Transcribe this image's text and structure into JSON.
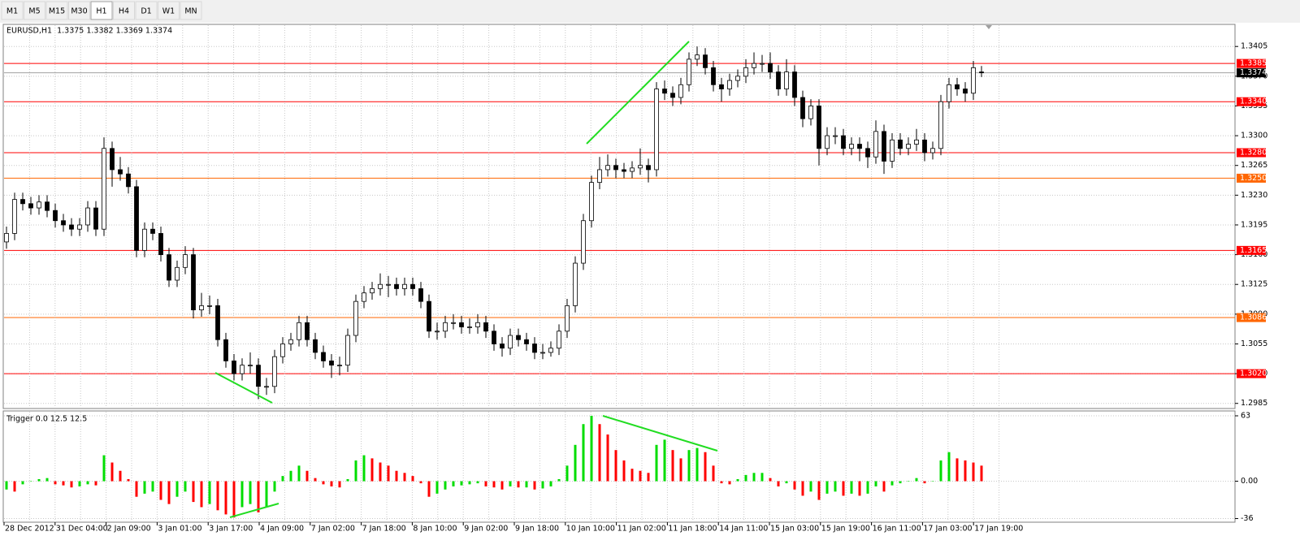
{
  "toolbar": {
    "timeframes": [
      "M1",
      "M5",
      "M15",
      "M30",
      "H1",
      "H4",
      "D1",
      "W1",
      "MN"
    ],
    "active": 4
  },
  "chart_data": [
    {
      "type": "candlestick",
      "title": "EURUSD,H1  1.3375 1.3382 1.3369 1.3374",
      "ohlc": [
        [
          1.3175,
          1.3193,
          1.3167,
          1.3185
        ],
        [
          1.3185,
          1.3233,
          1.3177,
          1.3225
        ],
        [
          1.3225,
          1.3233,
          1.3212,
          1.322
        ],
        [
          1.322,
          1.3228,
          1.3207,
          1.3215
        ],
        [
          1.3215,
          1.323,
          1.3207,
          1.3222
        ],
        [
          1.3222,
          1.323,
          1.3204,
          1.3212
        ],
        [
          1.3212,
          1.322,
          1.3192,
          1.32
        ],
        [
          1.32,
          1.3208,
          1.3187,
          1.3195
        ],
        [
          1.3195,
          1.3203,
          1.3182,
          1.319
        ],
        [
          1.319,
          1.3203,
          1.3182,
          1.3195
        ],
        [
          1.3195,
          1.3223,
          1.3187,
          1.3215
        ],
        [
          1.3215,
          1.3223,
          1.3182,
          1.319
        ],
        [
          1.319,
          1.3298,
          1.3182,
          1.3285
        ],
        [
          1.3285,
          1.3293,
          1.324,
          1.326
        ],
        [
          1.326,
          1.3275,
          1.3247,
          1.3255
        ],
        [
          1.3255,
          1.3263,
          1.3232,
          1.324
        ],
        [
          1.324,
          1.3248,
          1.3157,
          1.3165
        ],
        [
          1.3165,
          1.3198,
          1.3157,
          1.319
        ],
        [
          1.319,
          1.3198,
          1.3177,
          1.3185
        ],
        [
          1.3185,
          1.3193,
          1.3152,
          1.316
        ],
        [
          1.316,
          1.3168,
          1.3122,
          1.313
        ],
        [
          1.313,
          1.3153,
          1.3122,
          1.3145
        ],
        [
          1.3145,
          1.317,
          1.3137,
          1.316
        ],
        [
          1.316,
          1.3168,
          1.3085,
          1.3095
        ],
        [
          1.3095,
          1.3115,
          1.3087,
          1.31
        ],
        [
          1.31,
          1.3112,
          1.309,
          1.31
        ],
        [
          1.31,
          1.3108,
          1.3052,
          1.306
        ],
        [
          1.306,
          1.3068,
          1.3027,
          1.3035
        ],
        [
          1.3035,
          1.3043,
          1.3012,
          1.302
        ],
        [
          1.302,
          1.3038,
          1.3012,
          1.303
        ],
        [
          1.303,
          1.3045,
          1.302,
          1.303
        ],
        [
          1.303,
          1.3038,
          1.299,
          1.3005
        ],
        [
          1.3005,
          1.3015,
          1.2995,
          1.3005
        ],
        [
          1.3005,
          1.3048,
          1.2997,
          1.304
        ],
        [
          1.304,
          1.3063,
          1.3032,
          1.3055
        ],
        [
          1.3055,
          1.3068,
          1.3047,
          1.306
        ],
        [
          1.306,
          1.3088,
          1.3052,
          1.308
        ],
        [
          1.308,
          1.3088,
          1.3052,
          1.306
        ],
        [
          1.306,
          1.3068,
          1.3037,
          1.3045
        ],
        [
          1.3045,
          1.3053,
          1.3027,
          1.3035
        ],
        [
          1.3035,
          1.3043,
          1.3015,
          1.303
        ],
        [
          1.303,
          1.304,
          1.3018,
          1.303
        ],
        [
          1.303,
          1.3073,
          1.3022,
          1.3065
        ],
        [
          1.3065,
          1.3113,
          1.3057,
          1.3105
        ],
        [
          1.3105,
          1.3123,
          1.3097,
          1.3115
        ],
        [
          1.3115,
          1.3128,
          1.3107,
          1.312
        ],
        [
          1.312,
          1.3138,
          1.3112,
          1.3125
        ],
        [
          1.3125,
          1.3135,
          1.311,
          1.3125
        ],
        [
          1.3125,
          1.3133,
          1.3112,
          1.312
        ],
        [
          1.312,
          1.3133,
          1.3112,
          1.3125
        ],
        [
          1.3125,
          1.3133,
          1.3112,
          1.312
        ],
        [
          1.312,
          1.3128,
          1.3097,
          1.3105
        ],
        [
          1.3105,
          1.3113,
          1.3062,
          1.307
        ],
        [
          1.307,
          1.308,
          1.306,
          1.307
        ],
        [
          1.307,
          1.3088,
          1.3062,
          1.308
        ],
        [
          1.308,
          1.309,
          1.3072,
          1.308
        ],
        [
          1.308,
          1.3088,
          1.3067,
          1.3075
        ],
        [
          1.3075,
          1.3085,
          1.3067,
          1.3075
        ],
        [
          1.3075,
          1.309,
          1.3067,
          1.308
        ],
        [
          1.308,
          1.3088,
          1.3062,
          1.307
        ],
        [
          1.307,
          1.3078,
          1.3047,
          1.3055
        ],
        [
          1.3055,
          1.3063,
          1.304,
          1.305
        ],
        [
          1.305,
          1.3073,
          1.3042,
          1.3065
        ],
        [
          1.3065,
          1.3073,
          1.3052,
          1.306
        ],
        [
          1.306,
          1.3068,
          1.3047,
          1.3055
        ],
        [
          1.3055,
          1.3063,
          1.3037,
          1.3045
        ],
        [
          1.3045,
          1.3055,
          1.3037,
          1.3045
        ],
        [
          1.3045,
          1.3058,
          1.304,
          1.305
        ],
        [
          1.305,
          1.3078,
          1.3042,
          1.307
        ],
        [
          1.307,
          1.3108,
          1.3062,
          1.31
        ],
        [
          1.31,
          1.3158,
          1.3092,
          1.315
        ],
        [
          1.315,
          1.3208,
          1.3142,
          1.32
        ],
        [
          1.32,
          1.3253,
          1.3192,
          1.3245
        ],
        [
          1.3245,
          1.3275,
          1.3237,
          1.326
        ],
        [
          1.326,
          1.3278,
          1.3252,
          1.3265
        ],
        [
          1.3265,
          1.3273,
          1.325,
          1.326
        ],
        [
          1.326,
          1.3268,
          1.325,
          1.3258
        ],
        [
          1.3258,
          1.327,
          1.325,
          1.3262
        ],
        [
          1.3262,
          1.3285,
          1.3254,
          1.3265
        ],
        [
          1.3265,
          1.3273,
          1.3245,
          1.326
        ],
        [
          1.326,
          1.3363,
          1.3252,
          1.3355
        ],
        [
          1.3355,
          1.3365,
          1.3342,
          1.335
        ],
        [
          1.335,
          1.3358,
          1.3335,
          1.3345
        ],
        [
          1.3345,
          1.3368,
          1.3337,
          1.336
        ],
        [
          1.336,
          1.3398,
          1.3352,
          1.339
        ],
        [
          1.339,
          1.3405,
          1.3382,
          1.3395
        ],
        [
          1.3395,
          1.3403,
          1.3372,
          1.338
        ],
        [
          1.338,
          1.3388,
          1.3352,
          1.336
        ],
        [
          1.336,
          1.3368,
          1.334,
          1.3355
        ],
        [
          1.3355,
          1.3373,
          1.3347,
          1.3365
        ],
        [
          1.3365,
          1.3378,
          1.3357,
          1.337
        ],
        [
          1.337,
          1.339,
          1.3362,
          1.338
        ],
        [
          1.338,
          1.3398,
          1.3372,
          1.3385
        ],
        [
          1.3385,
          1.3395,
          1.3375,
          1.3385
        ],
        [
          1.3385,
          1.3398,
          1.3367,
          1.3375
        ],
        [
          1.3375,
          1.3383,
          1.3347,
          1.3355
        ],
        [
          1.3355,
          1.339,
          1.3347,
          1.3375
        ],
        [
          1.3375,
          1.3383,
          1.3335,
          1.3345
        ],
        [
          1.3345,
          1.3353,
          1.331,
          1.332
        ],
        [
          1.332,
          1.3343,
          1.3312,
          1.3335
        ],
        [
          1.3335,
          1.3343,
          1.3265,
          1.3285
        ],
        [
          1.3285,
          1.331,
          1.3277,
          1.33
        ],
        [
          1.33,
          1.331,
          1.329,
          1.33
        ],
        [
          1.33,
          1.3308,
          1.3277,
          1.3285
        ],
        [
          1.3285,
          1.3298,
          1.3277,
          1.329
        ],
        [
          1.329,
          1.3298,
          1.327,
          1.3285
        ],
        [
          1.3285,
          1.3293,
          1.3262,
          1.3275
        ],
        [
          1.3275,
          1.3318,
          1.3267,
          1.3305
        ],
        [
          1.3305,
          1.3313,
          1.3255,
          1.327
        ],
        [
          1.327,
          1.3303,
          1.3262,
          1.3295
        ],
        [
          1.3295,
          1.3303,
          1.3277,
          1.3285
        ],
        [
          1.3285,
          1.3298,
          1.3277,
          1.329
        ],
        [
          1.329,
          1.3308,
          1.3282,
          1.3295
        ],
        [
          1.3295,
          1.3303,
          1.327,
          1.328
        ],
        [
          1.328,
          1.3293,
          1.3272,
          1.3285
        ],
        [
          1.3285,
          1.3348,
          1.3277,
          1.334
        ],
        [
          1.334,
          1.3368,
          1.3332,
          1.336
        ],
        [
          1.336,
          1.3368,
          1.3347,
          1.3355
        ],
        [
          1.3355,
          1.3363,
          1.334,
          1.335
        ],
        [
          1.335,
          1.3388,
          1.3342,
          1.338
        ],
        [
          1.3375,
          1.3382,
          1.3369,
          1.3374
        ]
      ],
      "up_color": "#ffffff",
      "down_color": "#000000",
      "ylim": [
        1.2979,
        1.3431
      ],
      "yticks": [
        1.3405,
        {
          "value": 1.337,
          "label": "1.3370"
        },
        1.3335,
        {
          "value": 1.33,
          "label": "1.3300"
        },
        1.3265,
        {
          "value": 1.323,
          "label": "1.3230"
        },
        1.3195,
        {
          "value": 1.316,
          "label": "1.3160"
        },
        1.3125,
        {
          "value": 1.309,
          "label": "1.3090"
        },
        1.3055,
        {
          "value": 1.302,
          "label": "1.3020"
        },
        1.2985
      ],
      "levels": [
        {
          "value": 1.3385,
          "color": "#ff0000"
        },
        {
          "value": 1.334,
          "label": "1.3340",
          "color": "#ff0000"
        },
        {
          "value": 1.328,
          "label": "1.3280",
          "color": "#ff0000"
        },
        {
          "value": 1.325,
          "label": "1.3250",
          "color": "#ff6600"
        },
        {
          "value": 1.3165,
          "color": "#ff0000"
        },
        {
          "value": 1.3086,
          "color": "#ff6600"
        },
        {
          "value": 1.302,
          "label": "1.3020",
          "color": "#ff0000"
        }
      ],
      "current_price": 1.3374,
      "grid": true
    },
    {
      "type": "histogram",
      "title": "Trigger 0.0 12.5 12.5",
      "values": [
        -8,
        -10,
        -3,
        0,
        2,
        3,
        -3,
        -4,
        -6,
        -5,
        -3,
        -4,
        25,
        18,
        10,
        2,
        -15,
        -12,
        -10,
        -18,
        -22,
        -15,
        -10,
        -20,
        -25,
        -22,
        -28,
        -32,
        -35,
        -25,
        -22,
        -30,
        -25,
        -10,
        5,
        10,
        15,
        10,
        3,
        -3,
        -5,
        -6,
        2,
        20,
        25,
        22,
        18,
        15,
        10,
        8,
        5,
        -2,
        -15,
        -12,
        -8,
        -5,
        -4,
        -3,
        -2,
        -5,
        -6,
        -8,
        -5,
        -6,
        -6,
        -8,
        -7,
        -5,
        2,
        15,
        35,
        55,
        63,
        55,
        45,
        30,
        20,
        12,
        10,
        8,
        35,
        40,
        30,
        22,
        30,
        32,
        28,
        15,
        -2,
        -3,
        2,
        6,
        8,
        8,
        3,
        -5,
        -2,
        -8,
        -14,
        -10,
        -18,
        -12,
        -10,
        -14,
        -12,
        -14,
        -12,
        -5,
        -10,
        -4,
        -2,
        0,
        3,
        -2,
        0,
        20,
        28,
        22,
        20,
        18,
        15
      ],
      "rising_color": "#00dd00",
      "falling_color": "#ff0000",
      "ylim": [
        -39.5,
        67.7
      ],
      "yticks": [
        63,
        {
          "value": 0,
          "label": "0.00"
        },
        -36
      ],
      "x_tick_labels": [
        "28 Dec 2012",
        "31 Dec 04:00",
        "2 Jan 09:00",
        "3 Jan 01:00",
        "3 Jan 17:00",
        "4 Jan 09:00",
        "7 Jan 02:00",
        "7 Jan 18:00",
        "8 Jan 10:00",
        "9 Jan 02:00",
        "9 Jan 18:00",
        "10 Jan 10:00",
        "11 Jan 02:00",
        "11 Jan 18:00",
        "14 Jan 11:00",
        "15 Jan 03:00",
        "15 Jan 19:00",
        "16 Jan 11:00",
        "17 Jan 03:00",
        "17 Jan 19:00"
      ]
    }
  ]
}
